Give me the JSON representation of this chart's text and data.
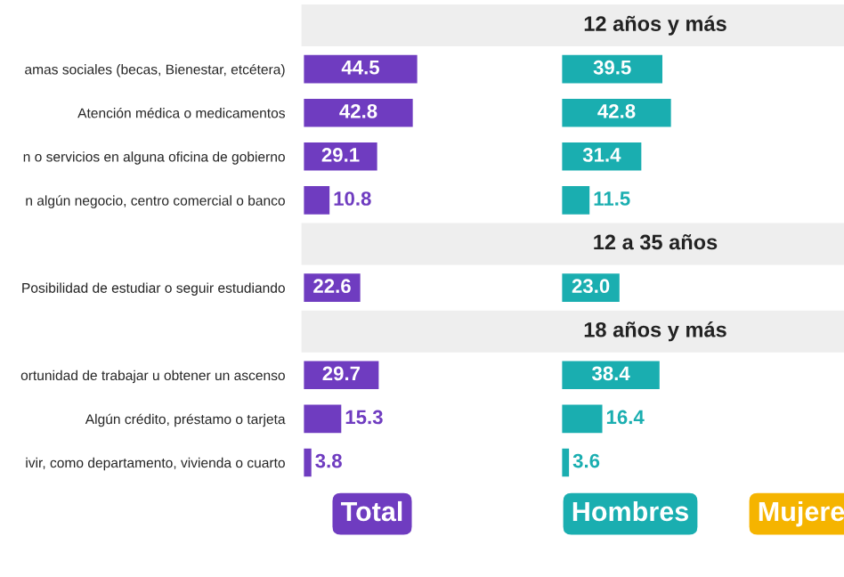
{
  "chart_data": [
    {
      "type": "bar",
      "orientation": "horizontal",
      "title": "Total",
      "color": "#6f3cc0",
      "tick_labels": "y",
      "categories": [
        null,
        "amas sociales (becas, Bienestar, etcétera)",
        "Atención médica o medicamentos",
        "n o servicios en alguna oficina de gobierno",
        "n algún negocio, centro comercial o banco",
        null,
        "Posibilidad de estudiar o seguir estudiando",
        null,
        "ortunidad de trabajar u obtener un ascenso",
        "Algún crédito, préstamo o tarjeta",
        "ivir, como departamento, vivienda o cuarto"
      ],
      "values": [
        null,
        44.5,
        42.8,
        29.1,
        10.8,
        null,
        22.6,
        null,
        29.7,
        15.3,
        3.8
      ],
      "value_labels": [
        null,
        "44.5",
        "42.8",
        "29.1",
        "10.8",
        null,
        "22.6",
        null,
        "29.7",
        "15.3",
        "3.8"
      ],
      "annotations": [
        "12 años y más",
        "12 a 35 años",
        "18 años y más"
      ]
    },
    {
      "type": "bar",
      "orientation": "horizontal",
      "title": "Hombres",
      "color": "#1aaeb0",
      "tick_labels": false,
      "values": [
        null,
        39.5,
        42.8,
        31.4,
        11.5,
        null,
        23.0,
        null,
        38.4,
        16.4,
        3.6
      ],
      "value_labels": [
        null,
        "39.5",
        "42.8",
        "31.4",
        "11.5",
        null,
        "23.0",
        null,
        "38.4",
        "16.4",
        "3.6"
      ]
    },
    {
      "type": "other",
      "title": "Mujere",
      "color": "#f5b400"
    }
  ]
}
